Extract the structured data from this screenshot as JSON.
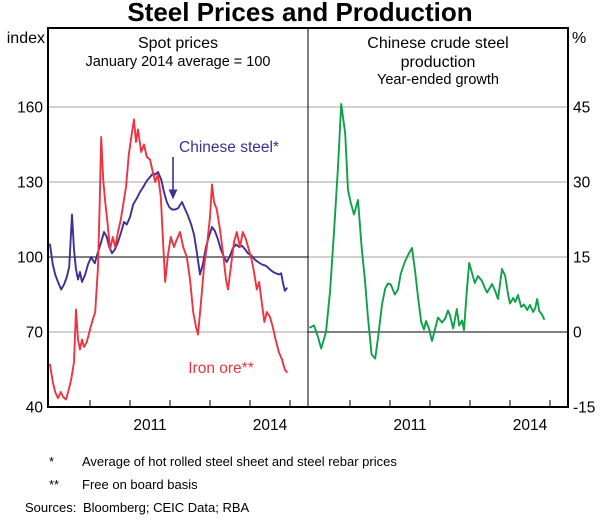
{
  "title": "Steel Prices and Production",
  "footnotes": [
    {
      "marker": "*",
      "text": "Average of hot rolled steel sheet and steel rebar prices"
    },
    {
      "marker": "**",
      "text": "Free on board basis"
    }
  ],
  "sources": {
    "label": "Sources:",
    "text": "Bloomberg; CEIC Data; RBA"
  },
  "colors": {
    "iron_ore": "#ef3340",
    "chinese_steel": "#3f2f95",
    "production": "#10a04a",
    "grid": "#a3a3a3",
    "ref_line": "#000000",
    "frame": "#000000"
  },
  "chart_data": [
    {
      "type": "line",
      "panel": "left",
      "title": "Spot prices",
      "subtitle": "January 2014 average = 100",
      "unit": "index",
      "ylim": [
        40,
        191.6
      ],
      "ytick_values": [
        160,
        130,
        100,
        70,
        40
      ],
      "ytick_labels": [
        "160",
        "130",
        "100",
        "70",
        "40"
      ],
      "gridlines": [
        70,
        130,
        160
      ],
      "ref_line": 100,
      "xlim": [
        2008.95,
        2015.45
      ],
      "xticks": [
        2010,
        2011,
        2012,
        2013,
        2014,
        2015
      ],
      "xtick_labels": [
        "2011",
        "2014"
      ],
      "xtick_label_positions": [
        2011.5,
        2014.5
      ],
      "series": [
        {
          "name": "Chinese steel*",
          "color_key": "chinese_steel",
          "points": [
            [
              2009.0,
              105
            ],
            [
              2009.07,
              97
            ],
            [
              2009.13,
              93
            ],
            [
              2009.2,
              90
            ],
            [
              2009.28,
              87
            ],
            [
              2009.35,
              89
            ],
            [
              2009.42,
              92
            ],
            [
              2009.48,
              96
            ],
            [
              2009.55,
              117
            ],
            [
              2009.6,
              103
            ],
            [
              2009.65,
              95
            ],
            [
              2009.7,
              91
            ],
            [
              2009.75,
              94
            ],
            [
              2009.8,
              90
            ],
            [
              2009.88,
              93
            ],
            [
              2009.95,
              97
            ],
            [
              2010.03,
              100
            ],
            [
              2010.12,
              97.5
            ],
            [
              2010.2,
              102
            ],
            [
              2010.28,
              106
            ],
            [
              2010.35,
              110
            ],
            [
              2010.42,
              108
            ],
            [
              2010.48,
              104
            ],
            [
              2010.55,
              101.5
            ],
            [
              2010.62,
              103
            ],
            [
              2010.7,
              106
            ],
            [
              2010.78,
              110
            ],
            [
              2010.85,
              114
            ],
            [
              2010.92,
              113
            ],
            [
              2011.0,
              116
            ],
            [
              2011.08,
              121
            ],
            [
              2011.17,
              123.5
            ],
            [
              2011.25,
              126
            ],
            [
              2011.33,
              128
            ],
            [
              2011.42,
              130.5
            ],
            [
              2011.5,
              132
            ],
            [
              2011.58,
              133.5
            ],
            [
              2011.63,
              133
            ],
            [
              2011.7,
              134
            ],
            [
              2011.78,
              131
            ],
            [
              2011.85,
              126
            ],
            [
              2011.92,
              122
            ],
            [
              2011.98,
              120
            ],
            [
              2012.05,
              119
            ],
            [
              2012.13,
              119
            ],
            [
              2012.2,
              119.5
            ],
            [
              2012.3,
              122
            ],
            [
              2012.38,
              119
            ],
            [
              2012.45,
              116.5
            ],
            [
              2012.53,
              113
            ],
            [
              2012.6,
              109
            ],
            [
              2012.67,
              102
            ],
            [
              2012.75,
              93
            ],
            [
              2012.82,
              97
            ],
            [
              2012.9,
              104
            ],
            [
              2012.97,
              108
            ],
            [
              2013.05,
              112
            ],
            [
              2013.12,
              110.5
            ],
            [
              2013.2,
              107
            ],
            [
              2013.27,
              103
            ],
            [
              2013.35,
              100
            ],
            [
              2013.42,
              98
            ],
            [
              2013.5,
              100.5
            ],
            [
              2013.57,
              103.5
            ],
            [
              2013.65,
              105
            ],
            [
              2013.73,
              104
            ],
            [
              2013.8,
              104.5
            ],
            [
              2013.88,
              103
            ],
            [
              2013.95,
              101.5
            ],
            [
              2014.04,
              100.5
            ],
            [
              2014.12,
              99
            ],
            [
              2014.2,
              98
            ],
            [
              2014.3,
              97
            ],
            [
              2014.4,
              96.5
            ],
            [
              2014.5,
              95
            ],
            [
              2014.58,
              94
            ],
            [
              2014.65,
              93.5
            ],
            [
              2014.72,
              93
            ],
            [
              2014.78,
              93.5
            ],
            [
              2014.82,
              90
            ],
            [
              2014.87,
              86.5
            ],
            [
              2014.92,
              87.5
            ]
          ]
        },
        {
          "name": "Iron ore**",
          "color_key": "iron_ore",
          "points": [
            [
              2009.0,
              57
            ],
            [
              2009.07,
              50
            ],
            [
              2009.13,
              46
            ],
            [
              2009.2,
              43.5
            ],
            [
              2009.27,
              46
            ],
            [
              2009.33,
              44
            ],
            [
              2009.4,
              43
            ],
            [
              2009.47,
              47
            ],
            [
              2009.53,
              51
            ],
            [
              2009.6,
              58
            ],
            [
              2009.65,
              79
            ],
            [
              2009.7,
              67
            ],
            [
              2009.75,
              63
            ],
            [
              2009.8,
              67
            ],
            [
              2009.85,
              64
            ],
            [
              2009.92,
              66
            ],
            [
              2010.0,
              71
            ],
            [
              2010.07,
              75
            ],
            [
              2010.13,
              78
            ],
            [
              2010.2,
              96
            ],
            [
              2010.24,
              120
            ],
            [
              2010.28,
              148
            ],
            [
              2010.33,
              131
            ],
            [
              2010.38,
              122
            ],
            [
              2010.43,
              115
            ],
            [
              2010.5,
              103
            ],
            [
              2010.57,
              108
            ],
            [
              2010.63,
              104
            ],
            [
              2010.7,
              110
            ],
            [
              2010.77,
              115
            ],
            [
              2010.83,
              121
            ],
            [
              2010.9,
              128
            ],
            [
              2010.97,
              141
            ],
            [
              2011.05,
              150
            ],
            [
              2011.1,
              155
            ],
            [
              2011.15,
              146
            ],
            [
              2011.2,
              151
            ],
            [
              2011.28,
              142
            ],
            [
              2011.35,
              145
            ],
            [
              2011.42,
              140
            ],
            [
              2011.5,
              139
            ],
            [
              2011.57,
              134
            ],
            [
              2011.63,
              130
            ],
            [
              2011.7,
              133
            ],
            [
              2011.77,
              124
            ],
            [
              2011.82,
              108
            ],
            [
              2011.88,
              90
            ],
            [
              2011.95,
              101
            ],
            [
              2012.02,
              108
            ],
            [
              2012.1,
              104
            ],
            [
              2012.17,
              107
            ],
            [
              2012.25,
              110
            ],
            [
              2012.33,
              104
            ],
            [
              2012.42,
              100
            ],
            [
              2012.5,
              91
            ],
            [
              2012.58,
              78
            ],
            [
              2012.65,
              72
            ],
            [
              2012.7,
              69
            ],
            [
              2012.77,
              81
            ],
            [
              2012.85,
              96
            ],
            [
              2012.92,
              104
            ],
            [
              2013.0,
              116
            ],
            [
              2013.05,
              129
            ],
            [
              2013.1,
              122
            ],
            [
              2013.17,
              119
            ],
            [
              2013.25,
              111
            ],
            [
              2013.33,
              101
            ],
            [
              2013.4,
              91
            ],
            [
              2013.45,
              87
            ],
            [
              2013.53,
              97
            ],
            [
              2013.6,
              106
            ],
            [
              2013.67,
              110
            ],
            [
              2013.75,
              104
            ],
            [
              2013.82,
              110
            ],
            [
              2013.9,
              107
            ],
            [
              2013.97,
              103
            ],
            [
              2014.04,
              99
            ],
            [
              2014.1,
              94
            ],
            [
              2014.17,
              87
            ],
            [
              2014.23,
              90
            ],
            [
              2014.3,
              81
            ],
            [
              2014.36,
              74
            ],
            [
              2014.42,
              78
            ],
            [
              2014.5,
              76
            ],
            [
              2014.57,
              72
            ],
            [
              2014.64,
              67
            ],
            [
              2014.72,
              62
            ],
            [
              2014.8,
              59
            ],
            [
              2014.87,
              55
            ],
            [
              2014.92,
              54
            ]
          ]
        }
      ]
    },
    {
      "type": "line",
      "panel": "right",
      "title": "Chinese crude steel",
      "title_line2": "production",
      "subtitle": "Year-ended growth",
      "unit": "%",
      "ylim": [
        -15,
        60.8
      ],
      "ytick_values": [
        45,
        30,
        15,
        0,
        -15
      ],
      "ytick_labels": [
        "45",
        "30",
        "15",
        "0",
        "-15"
      ],
      "gridlines": [
        15,
        30,
        45
      ],
      "ref_line": 0,
      "xlim": [
        2008.95,
        2015.45
      ],
      "xticks": [
        2010,
        2011,
        2012,
        2013,
        2014,
        2015
      ],
      "xtick_labels": [
        "2011",
        "2014"
      ],
      "xtick_label_positions": [
        2011.5,
        2014.5
      ],
      "series": [
        {
          "name": "Chinese crude steel production",
          "color_key": "production",
          "points": [
            [
              2009.0,
              0.9
            ],
            [
              2009.1,
              1.3
            ],
            [
              2009.2,
              -1.0
            ],
            [
              2009.28,
              -3.3
            ],
            [
              2009.4,
              0
            ],
            [
              2009.5,
              8
            ],
            [
              2009.6,
              20
            ],
            [
              2009.7,
              33
            ],
            [
              2009.78,
              45.6
            ],
            [
              2009.88,
              39.7
            ],
            [
              2009.95,
              28.4
            ],
            [
              2010.02,
              25.8
            ],
            [
              2010.1,
              23.5
            ],
            [
              2010.2,
              26.4
            ],
            [
              2010.29,
              17
            ],
            [
              2010.37,
              10.7
            ],
            [
              2010.45,
              2.8
            ],
            [
              2010.54,
              -4.5
            ],
            [
              2010.63,
              -5.3
            ],
            [
              2010.7,
              -1.2
            ],
            [
              2010.8,
              5.5
            ],
            [
              2010.88,
              8.7
            ],
            [
              2010.95,
              9.7
            ],
            [
              2011.02,
              9.5
            ],
            [
              2011.12,
              7.5
            ],
            [
              2011.2,
              8.5
            ],
            [
              2011.27,
              11.7
            ],
            [
              2011.37,
              14
            ],
            [
              2011.45,
              15.4
            ],
            [
              2011.55,
              16.8
            ],
            [
              2011.63,
              12
            ],
            [
              2011.7,
              7
            ],
            [
              2011.78,
              2
            ],
            [
              2011.85,
              0.5
            ],
            [
              2011.9,
              2.2
            ],
            [
              2011.97,
              0.8
            ],
            [
              2012.05,
              -1.8
            ],
            [
              2012.13,
              0.7
            ],
            [
              2012.2,
              2.9
            ],
            [
              2012.3,
              1.9
            ],
            [
              2012.38,
              2.7
            ],
            [
              2012.45,
              4.3
            ],
            [
              2012.5,
              3.3
            ],
            [
              2012.58,
              0.7
            ],
            [
              2012.67,
              4.6
            ],
            [
              2012.73,
              1.3
            ],
            [
              2012.8,
              2.3
            ],
            [
              2012.85,
              0.4
            ],
            [
              2012.92,
              8.2
            ],
            [
              2012.98,
              13.8
            ],
            [
              2013.05,
              11.8
            ],
            [
              2013.12,
              9.8
            ],
            [
              2013.2,
              11.2
            ],
            [
              2013.3,
              10.2
            ],
            [
              2013.38,
              8.6
            ],
            [
              2013.43,
              7.9
            ],
            [
              2013.55,
              9.6
            ],
            [
              2013.63,
              8.2
            ],
            [
              2013.7,
              6.6
            ],
            [
              2013.8,
              12.6
            ],
            [
              2013.88,
              11.2
            ],
            [
              2013.95,
              7.6
            ],
            [
              2014.0,
              5.7
            ],
            [
              2014.08,
              6.8
            ],
            [
              2014.13,
              6.0
            ],
            [
              2014.2,
              7.4
            ],
            [
              2014.28,
              5.0
            ],
            [
              2014.35,
              5.5
            ],
            [
              2014.43,
              4.4
            ],
            [
              2014.5,
              5.4
            ],
            [
              2014.58,
              4.0
            ],
            [
              2014.63,
              4.8
            ],
            [
              2014.68,
              6.6
            ],
            [
              2014.73,
              4.2
            ],
            [
              2014.8,
              3.5
            ],
            [
              2014.85,
              2.6
            ]
          ]
        }
      ]
    }
  ]
}
